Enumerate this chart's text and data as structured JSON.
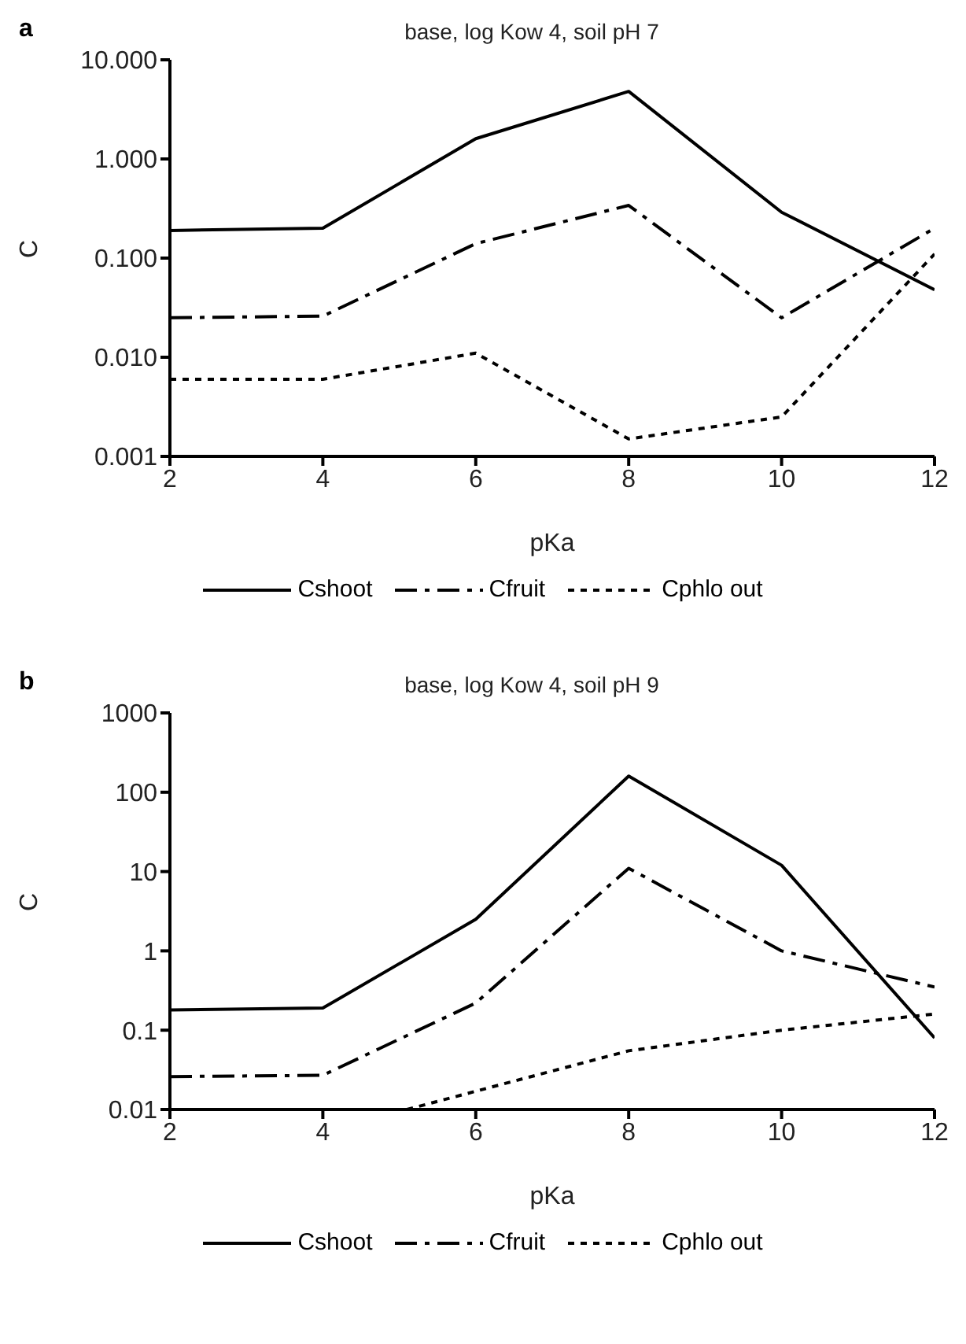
{
  "chart_data": [
    {
      "type": "line",
      "title": "base, log Kow 4, soil pH 7",
      "annotations": [
        "a"
      ],
      "xlabel": "pKa",
      "ylabel": "C",
      "log": "y",
      "grid": false,
      "legend": "bottom",
      "marker": "none",
      "x": [
        2,
        4,
        6,
        8,
        10,
        12
      ],
      "xlim": [
        2,
        12
      ],
      "xticks": [
        2,
        4,
        6,
        8,
        10,
        12
      ],
      "ylim": [
        0.001,
        10
      ],
      "yticks": [
        {
          "value": 0.001,
          "label": "0.001"
        },
        {
          "value": 0.01,
          "label": "0.010"
        },
        {
          "value": 0.1,
          "label": "0.100"
        },
        {
          "value": 1,
          "label": "1.000"
        },
        {
          "value": 10,
          "label": "10.000"
        }
      ],
      "series": [
        {
          "name": "Cshoot",
          "color": "#000000",
          "line_style": "solid",
          "values": [
            0.19,
            0.2,
            1.6,
            4.8,
            0.29,
            0.048
          ]
        },
        {
          "name": "Cfruit",
          "color": "#000000",
          "line_style": "dashed",
          "values": [
            0.025,
            0.026,
            0.14,
            0.34,
            0.025,
            0.2
          ]
        },
        {
          "name": "Cphlo out",
          "color": "#000000",
          "line_style": "dotted",
          "values": [
            0.006,
            0.006,
            0.011,
            0.0015,
            0.0025,
            0.11
          ]
        }
      ]
    },
    {
      "type": "line",
      "title": "base, log Kow 4, soil pH 9",
      "annotations": [
        "b"
      ],
      "xlabel": "pKa",
      "ylabel": "C",
      "log": "y",
      "grid": false,
      "legend": "bottom",
      "marker": "none",
      "x": [
        2,
        4,
        6,
        8,
        10,
        12
      ],
      "xlim": [
        2,
        12
      ],
      "xticks": [
        2,
        4,
        6,
        8,
        10,
        12
      ],
      "ylim": [
        0.01,
        1000
      ],
      "yticks": [
        0.01,
        0.1,
        1,
        10,
        100,
        1000
      ],
      "series": [
        {
          "name": "Cshoot",
          "color": "#000000",
          "line_style": "solid",
          "values": [
            0.18,
            0.19,
            2.5,
            160,
            12,
            0.08
          ]
        },
        {
          "name": "Cfruit",
          "color": "#000000",
          "line_style": "dashed",
          "values": [
            0.026,
            0.027,
            0.22,
            11,
            1.0,
            0.35
          ]
        },
        {
          "name": "Cphlo out",
          "color": "#000000",
          "line_style": "dotted",
          "x": [
            5.1,
            6,
            8,
            10,
            12
          ],
          "values": [
            0.01,
            0.017,
            0.055,
            0.1,
            0.16
          ]
        }
      ]
    }
  ]
}
